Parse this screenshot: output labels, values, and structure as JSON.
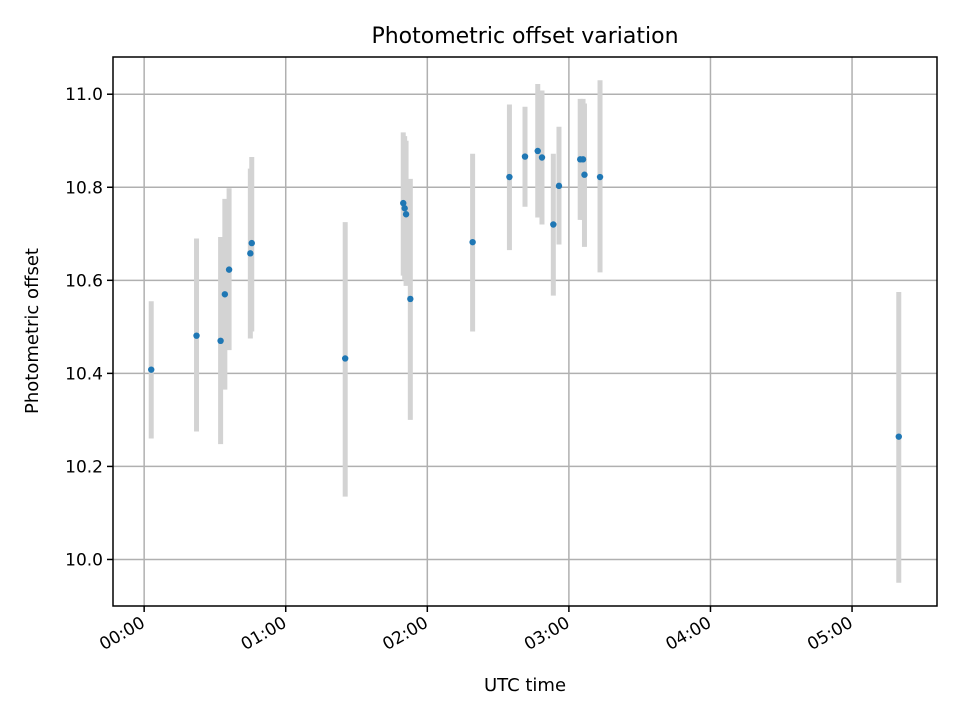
{
  "chart_data": {
    "type": "scatter",
    "title": "Photometric offset variation",
    "xlabel": "UTC time",
    "ylabel": "Photometric offset",
    "x_unit": "UTC hours",
    "xlim": [
      -0.22,
      5.6
    ],
    "ylim": [
      9.9,
      11.08
    ],
    "x_ticks": [
      {
        "value": 0,
        "label": "00:00"
      },
      {
        "value": 1,
        "label": "01:00"
      },
      {
        "value": 2,
        "label": "02:00"
      },
      {
        "value": 3,
        "label": "03:00"
      },
      {
        "value": 4,
        "label": "04:00"
      },
      {
        "value": 5,
        "label": "05:00"
      }
    ],
    "y_ticks": [
      {
        "value": 10.0,
        "label": "10.0"
      },
      {
        "value": 10.2,
        "label": "10.2"
      },
      {
        "value": 10.4,
        "label": "10.4"
      },
      {
        "value": 10.6,
        "label": "10.6"
      },
      {
        "value": 10.8,
        "label": "10.8"
      },
      {
        "value": 11.0,
        "label": "11.0"
      }
    ],
    "grid": true,
    "marker_color": "#1f77b4",
    "errorbar_color": "#d3d3d3",
    "points": [
      {
        "x": 0.05,
        "y": 10.408,
        "lo": 10.26,
        "hi": 10.555
      },
      {
        "x": 0.37,
        "y": 10.481,
        "lo": 10.275,
        "hi": 10.69
      },
      {
        "x": 0.54,
        "y": 10.47,
        "lo": 10.248,
        "hi": 10.693
      },
      {
        "x": 0.57,
        "y": 10.57,
        "lo": 10.365,
        "hi": 10.775
      },
      {
        "x": 0.6,
        "y": 10.623,
        "lo": 10.45,
        "hi": 10.798
      },
      {
        "x": 0.75,
        "y": 10.658,
        "lo": 10.475,
        "hi": 10.84
      },
      {
        "x": 0.76,
        "y": 10.68,
        "lo": 10.49,
        "hi": 10.865
      },
      {
        "x": 1.42,
        "y": 10.432,
        "lo": 10.135,
        "hi": 10.725
      },
      {
        "x": 1.83,
        "y": 10.766,
        "lo": 10.61,
        "hi": 10.918
      },
      {
        "x": 1.84,
        "y": 10.755,
        "lo": 10.6,
        "hi": 10.91
      },
      {
        "x": 1.85,
        "y": 10.742,
        "lo": 10.588,
        "hi": 10.9
      },
      {
        "x": 1.88,
        "y": 10.56,
        "lo": 10.3,
        "hi": 10.818
      },
      {
        "x": 2.32,
        "y": 10.682,
        "lo": 10.49,
        "hi": 10.872
      },
      {
        "x": 2.58,
        "y": 10.822,
        "lo": 10.665,
        "hi": 10.978
      },
      {
        "x": 2.69,
        "y": 10.866,
        "lo": 10.758,
        "hi": 10.973
      },
      {
        "x": 2.78,
        "y": 10.878,
        "lo": 10.735,
        "hi": 11.022
      },
      {
        "x": 2.81,
        "y": 10.864,
        "lo": 10.72,
        "hi": 11.008
      },
      {
        "x": 2.89,
        "y": 10.72,
        "lo": 10.567,
        "hi": 10.872
      },
      {
        "x": 2.93,
        "y": 10.803,
        "lo": 10.677,
        "hi": 10.93
      },
      {
        "x": 3.08,
        "y": 10.86,
        "lo": 10.73,
        "hi": 10.99
      },
      {
        "x": 3.1,
        "y": 10.86,
        "lo": 10.73,
        "hi": 10.99
      },
      {
        "x": 3.11,
        "y": 10.827,
        "lo": 10.672,
        "hi": 10.98
      },
      {
        "x": 3.22,
        "y": 10.822,
        "lo": 10.617,
        "hi": 11.03
      },
      {
        "x": 5.33,
        "y": 10.264,
        "lo": 9.95,
        "hi": 10.575
      }
    ]
  }
}
